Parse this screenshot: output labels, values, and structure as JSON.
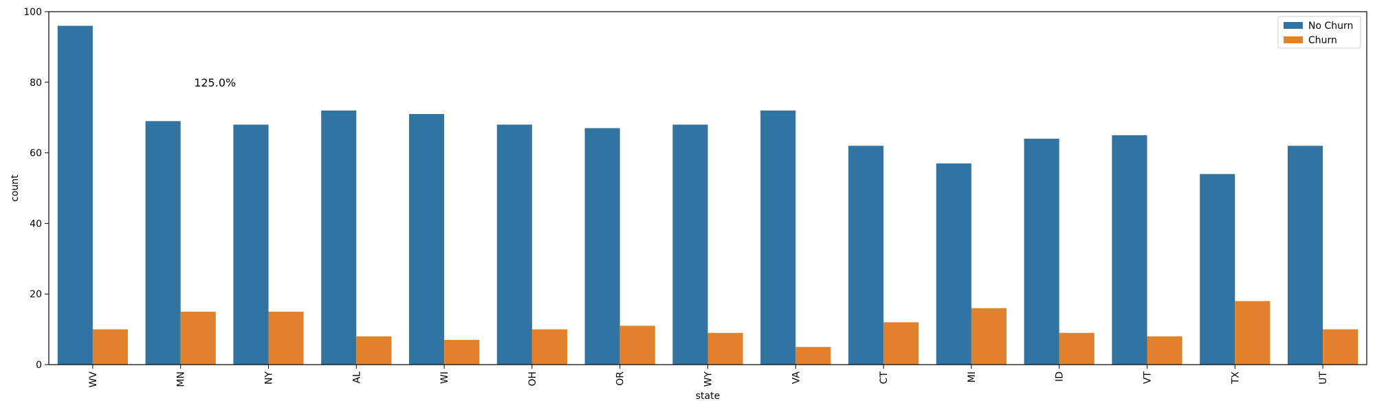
{
  "chart_data": {
    "type": "bar",
    "xlabel": "state",
    "ylabel": "count",
    "ylim": [
      0,
      100
    ],
    "yticks": [
      0,
      20,
      40,
      60,
      80,
      100
    ],
    "categories": [
      "WV",
      "MN",
      "NY",
      "AL",
      "WI",
      "OH",
      "OR",
      "WY",
      "VA",
      "CT",
      "MI",
      "ID",
      "VT",
      "TX",
      "UT"
    ],
    "series": [
      {
        "name": "No Churn",
        "color": "#3274a1",
        "values": [
          96,
          69,
          68,
          72,
          71,
          68,
          67,
          68,
          72,
          62,
          57,
          64,
          65,
          54,
          62
        ]
      },
      {
        "name": "Churn",
        "color": "#e1812c",
        "values": [
          10,
          15,
          15,
          8,
          7,
          10,
          11,
          9,
          5,
          12,
          16,
          9,
          8,
          18,
          10
        ]
      }
    ],
    "annotations": [
      {
        "text": "125.0%",
        "x": "MN",
        "y": 80
      }
    ],
    "legend": {
      "placement": "top-right"
    },
    "grid": false
  }
}
